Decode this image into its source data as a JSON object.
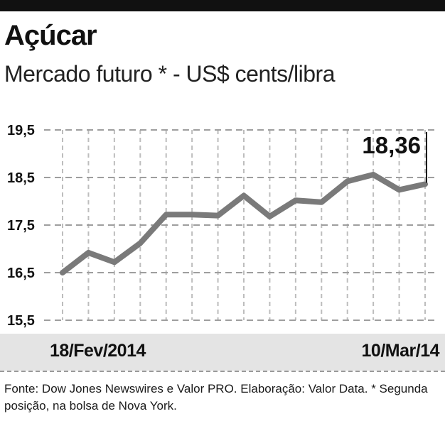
{
  "title": "Açúcar",
  "subtitle": "Mercado futuro * - US$ cents/libra",
  "footer": "Fonte: Dow Jones Newswires e Valor PRO. Elaboração: Valor Data. * Segunda posição, na bolsa de Nova York.",
  "chart_data": {
    "type": "line",
    "x_start_label": "18/Fev/2014",
    "x_end_label": "10/Mar/14",
    "y_ticks": [
      "19,5",
      "18,5",
      "17,5",
      "16,5",
      "15,5"
    ],
    "ylim": [
      15.5,
      19.5
    ],
    "grid": true,
    "values": [
      16.5,
      16.92,
      16.72,
      17.12,
      17.72,
      17.72,
      17.7,
      18.12,
      17.68,
      18.02,
      17.98,
      18.42,
      18.56,
      18.24,
      18.36
    ],
    "last_value_label": "18,36",
    "line_color": "#7a7a7a"
  }
}
